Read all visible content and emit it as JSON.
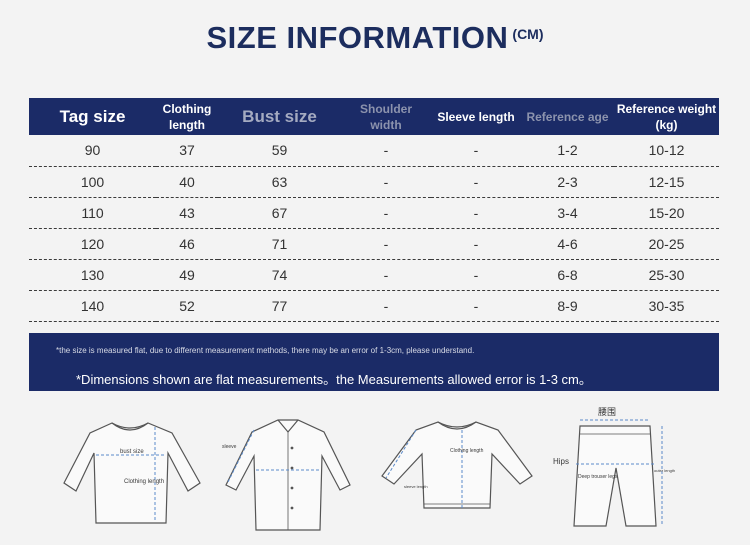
{
  "title": {
    "main": "SIZE INFORMATION",
    "unit": "(CM)"
  },
  "table": {
    "headers": [
      "Tag size",
      "Clothing length",
      "Bust size",
      "Shoulder width",
      "Sleeve length",
      "Reference age",
      "Reference weight (kg)"
    ],
    "rows": [
      [
        "90",
        "37",
        "59",
        "-",
        "-",
        "1-2",
        "10-12"
      ],
      [
        "100",
        "40",
        "63",
        "-",
        "-",
        "2-3",
        "12-15"
      ],
      [
        "110",
        "43",
        "67",
        "-",
        "-",
        "3-4",
        "15-20"
      ],
      [
        "120",
        "46",
        "71",
        "-",
        "-",
        "4-6",
        "20-25"
      ],
      [
        "130",
        "49",
        "74",
        "-",
        "-",
        "6-8",
        "25-30"
      ],
      [
        "140",
        "52",
        "77",
        "-",
        "-",
        "8-9",
        "30-35"
      ]
    ]
  },
  "notes": {
    "small": "*the size is measured flat, due to different measurement methods, there may be an error of 1-3cm, please understand.",
    "main": "*Dimensions shown are flat measurements。the Measurements allowed error is 1-3 cm。"
  },
  "diagrams": {
    "tshirt": {
      "bust_label": "bust size",
      "length_label": "Clothing length"
    },
    "shirt": {
      "label": "sleeve"
    },
    "sweater": {
      "length_label": "Clothing length",
      "sleeve_label": "sleeve length"
    },
    "pants": {
      "waist_label": "腰围",
      "hips_label": "Hips",
      "leg_label": "Deep trouser legs",
      "side_label": "outer length"
    }
  }
}
